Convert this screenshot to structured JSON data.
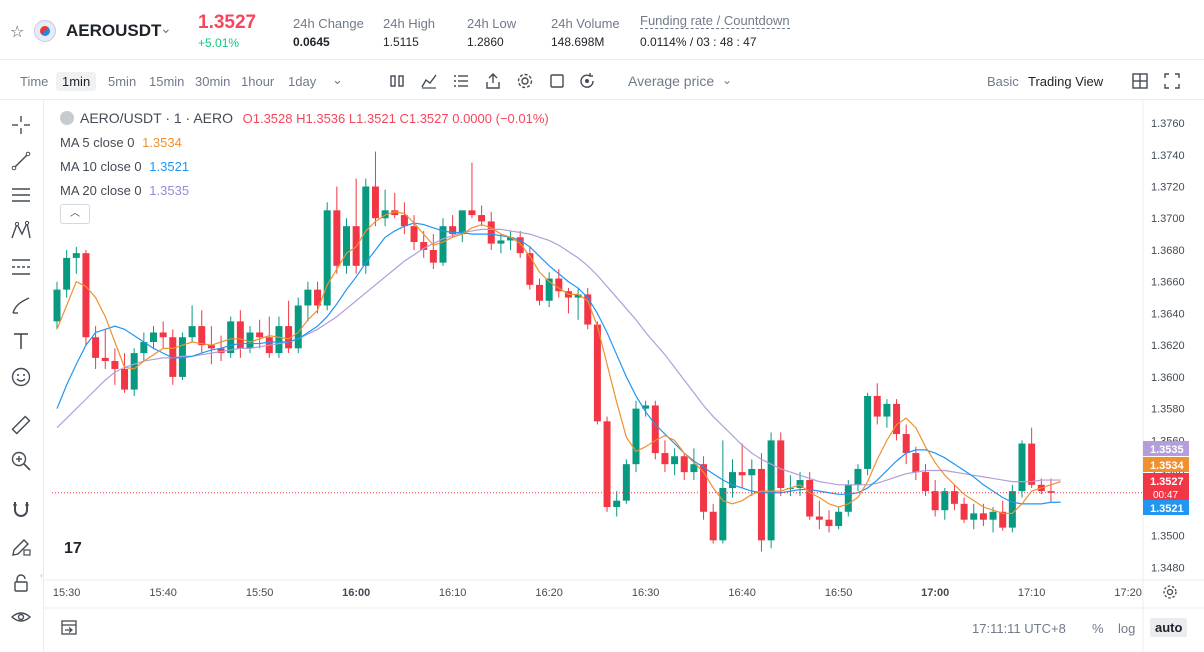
{
  "header": {
    "symbol": "AEROUSDT",
    "last_price": "1.3527",
    "change_pct": "+5.01%",
    "stats": [
      {
        "label": "24h Change",
        "value": "0.0645"
      },
      {
        "label": "24h High",
        "value": "1.5115"
      },
      {
        "label": "24h Low",
        "value": "1.2860"
      },
      {
        "label": "24h Volume",
        "value": "148.698M"
      },
      {
        "label": "Funding rate / Countdown",
        "value": "0.0114% / 03 : 48 : 47"
      }
    ]
  },
  "toolbar": {
    "timeframes": [
      "Time",
      "1min",
      "5min",
      "15min",
      "30min",
      "1hour",
      "1day"
    ],
    "active_timeframe": "1min",
    "price_type": "Average price",
    "views": [
      "Basic",
      "Trading View"
    ],
    "active_view": "Trading View"
  },
  "legend": {
    "title": "AERO/USDT · 1 · AERO",
    "ohlc": "O1.3528 H1.3536 L1.3521 C1.3527 0.0000 (−0.01%)",
    "ma": [
      {
        "label": "MA 5 close 0",
        "value": "1.3534",
        "color": "#f0902f"
      },
      {
        "label": "MA 10 close 0",
        "value": "1.3521",
        "color": "#2196f3"
      },
      {
        "label": "MA 20 close 0",
        "value": "1.3535",
        "color": "#b39ddb"
      }
    ]
  },
  "footer": {
    "clock": "17:11:11 UTC+8",
    "pct": "%",
    "log": "log",
    "auto": "auto"
  },
  "colors": {
    "up": "#0ecb81",
    "down": "#f6465d",
    "up_candle": "#089981",
    "down_candle": "#f23645"
  },
  "chart_data": {
    "type": "candlestick",
    "y_ticks": [
      "1.3760",
      "1.3740",
      "1.3720",
      "1.3700",
      "1.3680",
      "1.3660",
      "1.3640",
      "1.3620",
      "1.3600",
      "1.3580",
      "1.3560",
      "1.3540",
      "1.3520",
      "1.3500",
      "1.3480"
    ],
    "ylim": [
      1.3472,
      1.3772
    ],
    "x_ticks": [
      "15:30",
      "15:40",
      "15:50",
      "16:00",
      "16:10",
      "16:20",
      "16:30",
      "16:40",
      "16:50",
      "17:00",
      "17:10",
      "17:20"
    ],
    "price_labels": [
      {
        "text": "1.3535",
        "value": 1.3535,
        "color": "#b39ddb"
      },
      {
        "text": "1.3534",
        "value": 1.3534,
        "color": "#f0902f"
      },
      {
        "text": "1.3527",
        "sub": "00:47",
        "value": 1.3527,
        "color": "#f23645"
      },
      {
        "text": "1.3521",
        "value": 1.3521,
        "color": "#2196f3"
      }
    ],
    "candles": [
      [
        1.3635,
        1.366,
        1.363,
        1.3655
      ],
      [
        1.3655,
        1.368,
        1.365,
        1.3675
      ],
      [
        1.3675,
        1.3682,
        1.3665,
        1.3678
      ],
      [
        1.3678,
        1.368,
        1.362,
        1.3625
      ],
      [
        1.3625,
        1.3632,
        1.3605,
        1.3612
      ],
      [
        1.3612,
        1.363,
        1.3605,
        1.361
      ],
      [
        1.361,
        1.3618,
        1.3595,
        1.3605
      ],
      [
        1.3605,
        1.3615,
        1.359,
        1.3592
      ],
      [
        1.3592,
        1.3618,
        1.3588,
        1.3615
      ],
      [
        1.3615,
        1.3628,
        1.361,
        1.3622
      ],
      [
        1.3622,
        1.3632,
        1.3618,
        1.3628
      ],
      [
        1.3628,
        1.3635,
        1.3618,
        1.3625
      ],
      [
        1.3625,
        1.363,
        1.3595,
        1.36
      ],
      [
        1.36,
        1.3628,
        1.3598,
        1.3625
      ],
      [
        1.3625,
        1.3645,
        1.3622,
        1.3632
      ],
      [
        1.3632,
        1.3642,
        1.3615,
        1.362
      ],
      [
        1.362,
        1.3632,
        1.3608,
        1.3618
      ],
      [
        1.3618,
        1.3626,
        1.361,
        1.3615
      ],
      [
        1.3615,
        1.3638,
        1.3612,
        1.3635
      ],
      [
        1.3635,
        1.3642,
        1.3612,
        1.3618
      ],
      [
        1.3618,
        1.3632,
        1.3615,
        1.3628
      ],
      [
        1.3628,
        1.3636,
        1.3618,
        1.3625
      ],
      [
        1.3625,
        1.3638,
        1.3612,
        1.3615
      ],
      [
        1.3615,
        1.3638,
        1.3612,
        1.3632
      ],
      [
        1.3632,
        1.3648,
        1.3615,
        1.3618
      ],
      [
        1.3618,
        1.365,
        1.3615,
        1.3645
      ],
      [
        1.3645,
        1.366,
        1.3635,
        1.3655
      ],
      [
        1.3655,
        1.366,
        1.364,
        1.3645
      ],
      [
        1.3645,
        1.371,
        1.3642,
        1.3705
      ],
      [
        1.3705,
        1.372,
        1.3665,
        1.367
      ],
      [
        1.367,
        1.37,
        1.3665,
        1.3695
      ],
      [
        1.3695,
        1.3725,
        1.3665,
        1.367
      ],
      [
        1.367,
        1.3725,
        1.3665,
        1.372
      ],
      [
        1.372,
        1.3742,
        1.3695,
        1.37
      ],
      [
        1.37,
        1.3718,
        1.3695,
        1.3705
      ],
      [
        1.3705,
        1.3716,
        1.37,
        1.3702
      ],
      [
        1.3702,
        1.371,
        1.369,
        1.3695
      ],
      [
        1.3695,
        1.3702,
        1.368,
        1.3685
      ],
      [
        1.3685,
        1.3692,
        1.3675,
        1.368
      ],
      [
        1.368,
        1.369,
        1.3668,
        1.3672
      ],
      [
        1.3672,
        1.37,
        1.367,
        1.3695
      ],
      [
        1.3695,
        1.3702,
        1.3688,
        1.369
      ],
      [
        1.369,
        1.3704,
        1.3685,
        1.3705
      ],
      [
        1.3705,
        1.3735,
        1.37,
        1.3702
      ],
      [
        1.3702,
        1.3708,
        1.3695,
        1.3698
      ],
      [
        1.3698,
        1.3704,
        1.368,
        1.3684
      ],
      [
        1.3684,
        1.369,
        1.3678,
        1.3686
      ],
      [
        1.3686,
        1.3692,
        1.368,
        1.3688
      ],
      [
        1.3688,
        1.3692,
        1.3675,
        1.3678
      ],
      [
        1.3678,
        1.3682,
        1.3655,
        1.3658
      ],
      [
        1.3658,
        1.3662,
        1.3645,
        1.3648
      ],
      [
        1.3648,
        1.3666,
        1.3644,
        1.3662
      ],
      [
        1.3662,
        1.3668,
        1.365,
        1.3654
      ],
      [
        1.3654,
        1.3656,
        1.364,
        1.365
      ],
      [
        1.365,
        1.3656,
        1.3636,
        1.3652
      ],
      [
        1.3652,
        1.3656,
        1.363,
        1.3633
      ],
      [
        1.3633,
        1.3635,
        1.357,
        1.3572
      ],
      [
        1.3572,
        1.3575,
        1.3515,
        1.3518
      ],
      [
        1.3518,
        1.3528,
        1.3512,
        1.3522
      ],
      [
        1.3522,
        1.3548,
        1.352,
        1.3545
      ],
      [
        1.3545,
        1.3585,
        1.354,
        1.358
      ],
      [
        1.358,
        1.3585,
        1.3575,
        1.3582
      ],
      [
        1.3582,
        1.3585,
        1.3548,
        1.3552
      ],
      [
        1.3552,
        1.356,
        1.354,
        1.3545
      ],
      [
        1.3545,
        1.3555,
        1.3538,
        1.355
      ],
      [
        1.355,
        1.3552,
        1.3535,
        1.354
      ],
      [
        1.354,
        1.3555,
        1.3535,
        1.3545
      ],
      [
        1.3545,
        1.355,
        1.351,
        1.3515
      ],
      [
        1.3515,
        1.352,
        1.3495,
        1.3497
      ],
      [
        1.3497,
        1.356,
        1.3495,
        1.353
      ],
      [
        1.353,
        1.3548,
        1.3524,
        1.354
      ],
      [
        1.354,
        1.3558,
        1.353,
        1.3538
      ],
      [
        1.3538,
        1.3548,
        1.3525,
        1.3542
      ],
      [
        1.3542,
        1.3552,
        1.349,
        1.3497
      ],
      [
        1.3497,
        1.3565,
        1.3492,
        1.356
      ],
      [
        1.356,
        1.3565,
        1.3525,
        1.353
      ],
      [
        1.353,
        1.3538,
        1.3525,
        1.353
      ],
      [
        1.353,
        1.354,
        1.3525,
        1.3535
      ],
      [
        1.3535,
        1.354,
        1.351,
        1.3512
      ],
      [
        1.3512,
        1.3522,
        1.3504,
        1.351
      ],
      [
        1.351,
        1.3516,
        1.3502,
        1.3506
      ],
      [
        1.3506,
        1.3518,
        1.3504,
        1.3515
      ],
      [
        1.3515,
        1.3535,
        1.3512,
        1.3532
      ],
      [
        1.3532,
        1.3545,
        1.3528,
        1.3542
      ],
      [
        1.3542,
        1.359,
        1.3538,
        1.3588
      ],
      [
        1.3588,
        1.3596,
        1.357,
        1.3575
      ],
      [
        1.3575,
        1.3586,
        1.3568,
        1.3583
      ],
      [
        1.3583,
        1.3586,
        1.356,
        1.3564
      ],
      [
        1.3564,
        1.357,
        1.3545,
        1.3552
      ],
      [
        1.3552,
        1.3556,
        1.3535,
        1.354
      ],
      [
        1.354,
        1.3545,
        1.3525,
        1.3528
      ],
      [
        1.3528,
        1.3535,
        1.3512,
        1.3516
      ],
      [
        1.3516,
        1.353,
        1.351,
        1.3528
      ],
      [
        1.3528,
        1.3532,
        1.3516,
        1.352
      ],
      [
        1.352,
        1.3524,
        1.3508,
        1.351
      ],
      [
        1.351,
        1.352,
        1.3504,
        1.3514
      ],
      [
        1.3514,
        1.352,
        1.3506,
        1.351
      ],
      [
        1.351,
        1.3518,
        1.3502,
        1.3515
      ],
      [
        1.3515,
        1.3522,
        1.3503,
        1.3505
      ],
      [
        1.3505,
        1.3532,
        1.3502,
        1.3528
      ],
      [
        1.3528,
        1.356,
        1.3524,
        1.3558
      ],
      [
        1.3558,
        1.3568,
        1.353,
        1.3532
      ],
      [
        1.3532,
        1.3536,
        1.3526,
        1.3528
      ],
      [
        1.3528,
        1.3536,
        1.3521,
        1.3527
      ]
    ],
    "ma5": [
      1.363,
      1.3645,
      1.366,
      1.3657,
      1.365,
      1.3638,
      1.3622,
      1.3606,
      1.3605,
      1.361,
      1.3614,
      1.3618,
      1.3618,
      1.362,
      1.3622,
      1.3621,
      1.362,
      1.3622,
      1.3624,
      1.3624,
      1.3622,
      1.3624,
      1.3626,
      1.3625,
      1.3624,
      1.3628,
      1.3636,
      1.3642,
      1.3658,
      1.3668,
      1.3678,
      1.3682,
      1.3692,
      1.3698,
      1.3702,
      1.3704,
      1.3703,
      1.3697,
      1.369,
      1.3683,
      1.3685,
      1.3688,
      1.369,
      1.3694,
      1.3696,
      1.3694,
      1.369,
      1.3688,
      1.3684,
      1.3676,
      1.3666,
      1.366,
      1.3656,
      1.3652,
      1.3652,
      1.3648,
      1.3632,
      1.3608,
      1.3584,
      1.3562,
      1.3553,
      1.3556,
      1.356,
      1.3563,
      1.356,
      1.3552,
      1.3546,
      1.354,
      1.353,
      1.3522,
      1.352,
      1.3522,
      1.3526,
      1.3528,
      1.3528,
      1.3528,
      1.353,
      1.3532,
      1.3527,
      1.3524,
      1.352,
      1.3518,
      1.352,
      1.3524,
      1.3534,
      1.3548,
      1.356,
      1.357,
      1.3574,
      1.3568,
      1.3556,
      1.3546,
      1.3538,
      1.3532,
      1.3526,
      1.3522,
      1.3518,
      1.3516,
      1.3514,
      1.3514,
      1.352,
      1.3528,
      1.353,
      1.3532,
      1.3534
    ],
    "ma10": [
      1.358,
      1.3595,
      1.3608,
      1.362,
      1.3628,
      1.363,
      1.3632,
      1.363,
      1.3626,
      1.3622,
      1.3618,
      1.3615,
      1.3612,
      1.3612,
      1.3613,
      1.3615,
      1.3617,
      1.3618,
      1.362,
      1.3621,
      1.3621,
      1.3621,
      1.3622,
      1.3622,
      1.3622,
      1.3624,
      1.3628,
      1.3632,
      1.3638,
      1.3646,
      1.3655,
      1.3663,
      1.3672,
      1.368,
      1.3688,
      1.3692,
      1.3695,
      1.3697,
      1.3696,
      1.3694,
      1.3692,
      1.3691,
      1.3691,
      1.369,
      1.369,
      1.369,
      1.3689,
      1.3688,
      1.3686,
      1.3682,
      1.3676,
      1.367,
      1.3665,
      1.366,
      1.3656,
      1.365,
      1.364,
      1.3628,
      1.3614,
      1.36,
      1.3588,
      1.3578,
      1.357,
      1.3564,
      1.3558,
      1.3552,
      1.3547,
      1.3543,
      1.3539,
      1.3535,
      1.3532,
      1.353,
      1.3528,
      1.3527,
      1.3527,
      1.3527,
      1.3528,
      1.3529,
      1.3529,
      1.3528,
      1.3527,
      1.3526,
      1.3526,
      1.3527,
      1.353,
      1.3535,
      1.3541,
      1.3547,
      1.3552,
      1.3554,
      1.3554,
      1.3552,
      1.3549,
      1.3545,
      1.3541,
      1.3537,
      1.3532,
      1.3528,
      1.3524,
      1.3521,
      1.352,
      1.352,
      1.352,
      1.3521,
      1.3521
    ],
    "ma20": [
      1.3568,
      1.3574,
      1.358,
      1.3586,
      1.3592,
      1.3598,
      1.3603,
      1.3606,
      1.3608,
      1.361,
      1.3611,
      1.3612,
      1.3612,
      1.3613,
      1.3613,
      1.3614,
      1.3615,
      1.3616,
      1.3617,
      1.3618,
      1.3618,
      1.3619,
      1.362,
      1.3621,
      1.3622,
      1.3624,
      1.3627,
      1.363,
      1.3634,
      1.3638,
      1.3643,
      1.3648,
      1.3653,
      1.3658,
      1.3663,
      1.3668,
      1.3673,
      1.3677,
      1.3681,
      1.3684,
      1.3687,
      1.3689,
      1.3691,
      1.3692,
      1.3693,
      1.3693,
      1.3693,
      1.3692,
      1.3691,
      1.369,
      1.3688,
      1.3686,
      1.3683,
      1.3679,
      1.3675,
      1.367,
      1.3664,
      1.3657,
      1.365,
      1.3643,
      1.3636,
      1.3628,
      1.3621,
      1.3614,
      1.3606,
      1.3598,
      1.359,
      1.3582,
      1.3575,
      1.3569,
      1.3563,
      1.3557,
      1.3552,
      1.3548,
      1.3545,
      1.3542,
      1.354,
      1.3538,
      1.3536,
      1.3534,
      1.3533,
      1.3532,
      1.3532,
      1.3532,
      1.3532,
      1.3533,
      1.3535,
      1.3537,
      1.3539,
      1.354,
      1.3541,
      1.3541,
      1.3541,
      1.354,
      1.3539,
      1.3538,
      1.3537,
      1.3536,
      1.3535,
      1.3534,
      1.3534,
      1.3534,
      1.3535,
      1.3535,
      1.3535
    ]
  }
}
